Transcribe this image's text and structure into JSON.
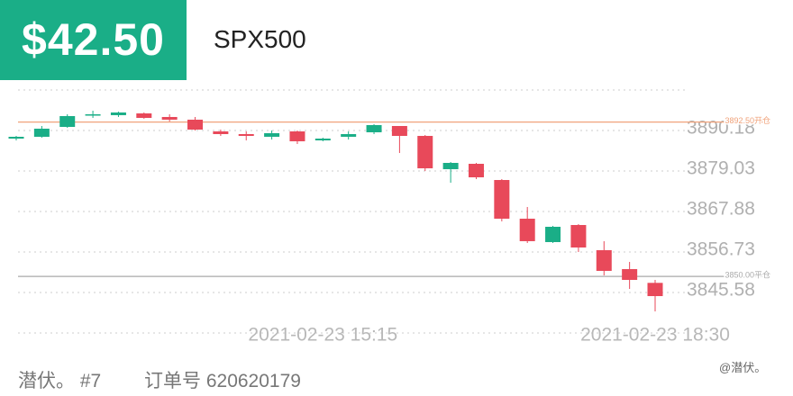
{
  "header": {
    "amount": "$42.50",
    "symbol": "SPX500"
  },
  "footer": {
    "user": "潜伏。 #7",
    "order": "订单号 620620179",
    "watermark": "@潜伏。"
  },
  "chart_data": {
    "type": "candlestick",
    "categories": [
      null,
      null,
      null,
      null,
      null,
      null,
      null,
      null,
      null,
      null,
      null,
      null,
      "2021-02-23 15:15",
      null,
      null,
      null,
      null,
      null,
      null,
      null,
      null,
      null,
      null,
      null,
      null,
      "2021-02-23 18:30"
    ],
    "open": [
      3887.95,
      3888.45,
      3891.17,
      3894.4,
      3894.4,
      3894.89,
      3893.9,
      3893.16,
      3889.93,
      3889.19,
      3888.45,
      3889.93,
      3887.46,
      3888.45,
      3889.69,
      3891.42,
      3888.69,
      3879.53,
      3881.01,
      3876.55,
      3865.9,
      3859.46,
      3864.16,
      3857.23,
      3852.02,
      3848.23
    ],
    "high": [
      3888.69,
      3891.42,
      3894.64,
      3895.63,
      3895.38,
      3895.14,
      3894.64,
      3893.9,
      3890.43,
      3889.93,
      3890.18,
      3890.18,
      3888.2,
      3889.93,
      3891.91,
      3891.42,
      3888.94,
      3881.51,
      3881.26,
      3876.8,
      3869.12,
      3863.92,
      3864.41,
      3859.7,
      3854.0,
      3849.05
    ],
    "low": [
      3887.46,
      3888.2,
      3890.92,
      3893.65,
      3893.9,
      3893.41,
      3892.66,
      3890.18,
      3888.69,
      3887.46,
      3887.7,
      3886.46,
      3887.21,
      3887.7,
      3889.19,
      3883.99,
      3879.03,
      3875.81,
      3876.8,
      3865.16,
      3859.21,
      3859.21,
      3856.73,
      3850.29,
      3846.57,
      3840.38
    ],
    "close": [
      3888.45,
      3890.68,
      3894.15,
      3894.64,
      3895.14,
      3893.65,
      3893.16,
      3890.43,
      3889.19,
      3888.69,
      3889.44,
      3887.21,
      3887.95,
      3889.19,
      3891.67,
      3888.69,
      3879.77,
      3881.26,
      3877.29,
      3865.9,
      3859.71,
      3863.67,
      3857.97,
      3851.53,
      3849.05,
      3844.59
    ],
    "up_color": "#1aae87",
    "down_color": "#e8495a",
    "ylim": [
      3834.43,
      3901.33
    ],
    "yticks": [
      3845.58,
      3856.73,
      3867.88,
      3879.03,
      3890.18
    ],
    "grid": true,
    "reference_lines": [
      {
        "value": 3892.5,
        "label": "3892.50开仓",
        "color": "#f0a27a"
      },
      {
        "value": 3850.0,
        "label": "3850.00平仓",
        "color": "#aaaaaa"
      }
    ]
  }
}
